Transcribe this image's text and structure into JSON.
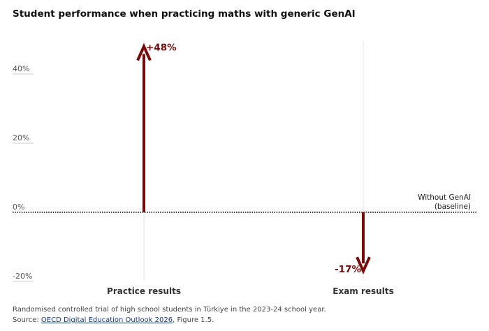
{
  "title": "Student performance when practicing maths with generic GenAI",
  "chart_data": {
    "type": "bar",
    "categories": [
      "Practice results",
      "Exam results"
    ],
    "values": [
      48,
      -17
    ],
    "value_labels": [
      "+48%",
      "-17%"
    ],
    "yticks": [
      40,
      20,
      0,
      -20
    ],
    "ytick_labels": [
      "40%",
      "20%",
      "0%",
      "-20%"
    ],
    "ylim": [
      -20,
      48
    ],
    "baseline_label_line1": "Without GenAI",
    "baseline_label_line2": "(baseline)",
    "grid": false
  },
  "colors": {
    "arrow": "#7a0a0a",
    "baseline": "#111111",
    "guide": "#e6e6e6",
    "tick": "#555555"
  },
  "footer": {
    "note": "Randomised controlled trial of high school students in Türkiye in the 2023-24 school year.",
    "source_prefix": "Source: ",
    "source_link": "OECD Digital Education Outlook 2026",
    "source_suffix": ", Figure 1.5."
  }
}
